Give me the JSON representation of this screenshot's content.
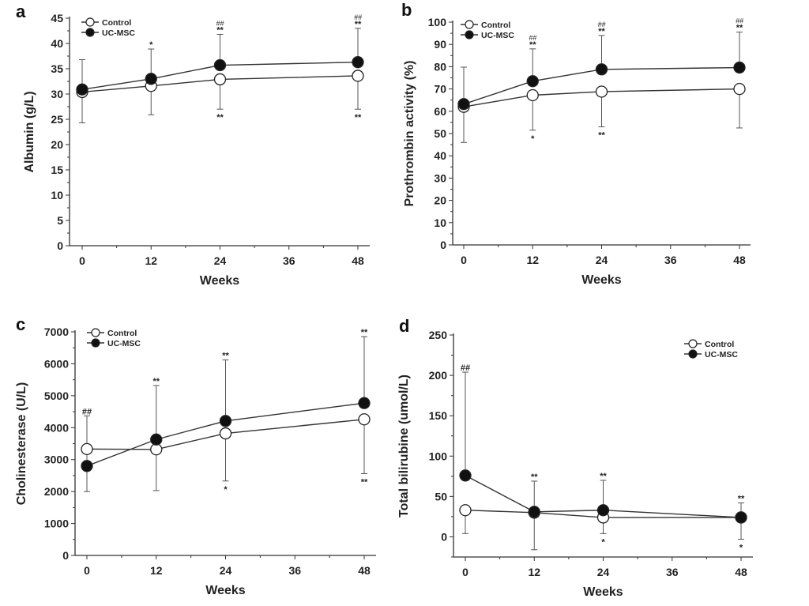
{
  "chart_data": [
    {
      "type": "line",
      "panel": "a",
      "title": "",
      "xlabel": "Weeks",
      "ylabel": "Albumin (g/L)",
      "x": [
        0,
        12,
        24,
        48
      ],
      "xticks": [
        0,
        12,
        24,
        36,
        48
      ],
      "xlim": [
        -3,
        50
      ],
      "ylim": [
        0,
        45
      ],
      "yticks": [
        0,
        5,
        10,
        15,
        20,
        25,
        30,
        35,
        40,
        45
      ],
      "legend_position": "top-left",
      "series": [
        {
          "name": "Control",
          "marker": "open-circle",
          "values": [
            30.4,
            31.6,
            32.9,
            33.6
          ],
          "error_lower": [
            24.3,
            25.9,
            27.0,
            27.0
          ],
          "error_upper": null,
          "sig_below": [
            "",
            "",
            "**",
            "**"
          ]
        },
        {
          "name": "UC-MSC",
          "marker": "filled-circle",
          "values": [
            30.9,
            33.0,
            35.7,
            36.3
          ],
          "error_upper": [
            36.8,
            38.9,
            41.8,
            43.0
          ],
          "error_lower": null,
          "sig_above": [
            "",
            "*",
            "**",
            "**"
          ],
          "sig_between": [
            "",
            "",
            "##",
            "##"
          ]
        }
      ]
    },
    {
      "type": "line",
      "panel": "b",
      "xlabel": "Weeks",
      "ylabel": "Prothrombin activity (%)",
      "x": [
        0,
        12,
        24,
        48
      ],
      "xticks": [
        0,
        12,
        24,
        36,
        48
      ],
      "xlim": [
        -3,
        50
      ],
      "ylim": [
        0,
        100
      ],
      "yticks": [
        0,
        10,
        20,
        30,
        40,
        50,
        60,
        70,
        80,
        90,
        100
      ],
      "legend_position": "top-left",
      "series": [
        {
          "name": "Control",
          "marker": "open-circle",
          "values": [
            62.0,
            67.2,
            68.8,
            70.0
          ],
          "error_lower": [
            46.0,
            51.5,
            53.0,
            52.5
          ],
          "error_upper": null,
          "sig_below": [
            "",
            "*",
            "**",
            ""
          ]
        },
        {
          "name": "UC-MSC",
          "marker": "filled-circle",
          "values": [
            63.2,
            73.5,
            78.8,
            79.6
          ],
          "error_upper": [
            79.8,
            88.0,
            94.0,
            95.5
          ],
          "error_lower": null,
          "sig_above": [
            "",
            "**",
            "**",
            "**"
          ],
          "sig_between": [
            "",
            "##",
            "##",
            "##"
          ]
        }
      ]
    },
    {
      "type": "line",
      "panel": "c",
      "xlabel": "Weeks",
      "ylabel": "Cholinesterase (U/L)",
      "x": [
        0,
        12,
        24,
        48
      ],
      "xticks": [
        0,
        12,
        24,
        36,
        48
      ],
      "xlim": [
        -2,
        50
      ],
      "ylim": [
        0,
        7000
      ],
      "yticks": [
        0,
        1000,
        2000,
        3000,
        4000,
        5000,
        6000,
        7000
      ],
      "legend_position": "top-left",
      "series": [
        {
          "name": "Control",
          "marker": "open-circle",
          "values": [
            3330,
            3320,
            3820,
            4260
          ],
          "error_lower": [
            2000,
            2030,
            2330,
            2560
          ],
          "error_upper": null,
          "sig_below": [
            "",
            "",
            "*",
            "**"
          ]
        },
        {
          "name": "UC-MSC",
          "marker": "filled-circle",
          "values": [
            2800,
            3630,
            4210,
            4770
          ],
          "error_upper": [
            4370,
            5320,
            6120,
            6850
          ],
          "error_lower": null,
          "sig_above": [
            "##",
            "**",
            "**",
            "**"
          ],
          "sig_between": [
            "",
            "",
            "",
            ""
          ]
        }
      ]
    },
    {
      "type": "line",
      "panel": "d",
      "xlabel": "Weeks",
      "ylabel": "Total bilirubine (umol/L)",
      "x": [
        0,
        12,
        24,
        48
      ],
      "xticks": [
        0,
        12,
        24,
        36,
        48
      ],
      "xlim": [
        -2,
        50
      ],
      "ylim": [
        -25,
        250
      ],
      "yticks": [
        0,
        50,
        100,
        150,
        200,
        250
      ],
      "legend_position": "top-right",
      "series": [
        {
          "name": "Control",
          "marker": "open-circle",
          "values": [
            33,
            30,
            24,
            24
          ],
          "error_lower": [
            4,
            -16,
            4,
            -3
          ],
          "error_upper": null,
          "sig_below": [
            "",
            "",
            "*",
            "*"
          ]
        },
        {
          "name": "UC-MSC",
          "marker": "filled-circle",
          "values": [
            76,
            31,
            33,
            24
          ],
          "error_upper": [
            204,
            69,
            70,
            42
          ],
          "error_lower": null,
          "sig_above": [
            "##",
            "**",
            "**",
            "**"
          ],
          "sig_between": [
            "",
            "",
            "",
            ""
          ]
        }
      ]
    }
  ],
  "labels": {
    "panel_a": "a",
    "panel_b": "b",
    "panel_c": "c",
    "panel_d": "d"
  }
}
